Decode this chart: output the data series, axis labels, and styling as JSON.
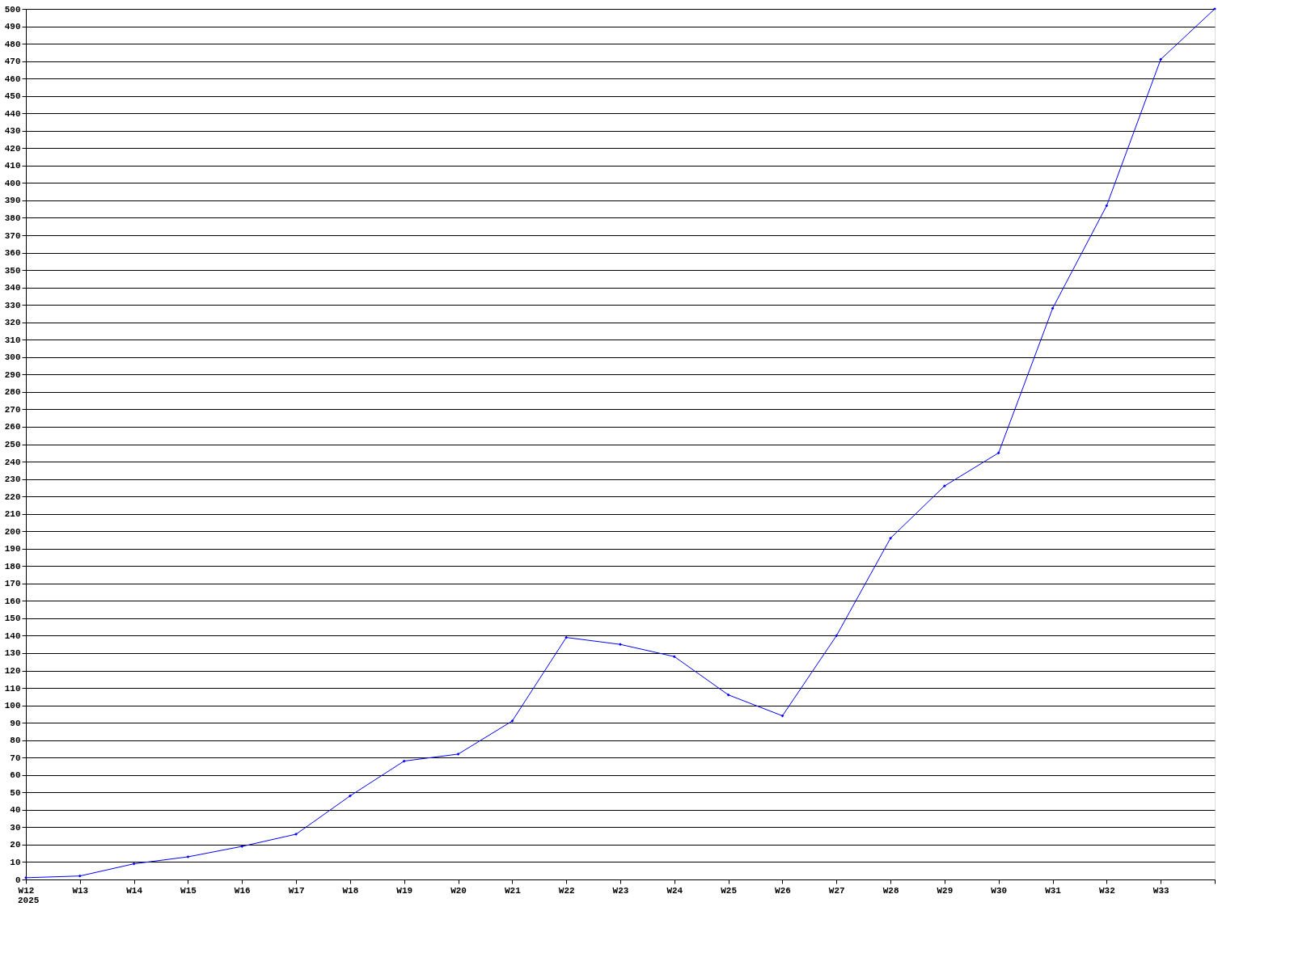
{
  "chart_data": {
    "type": "line",
    "categories": [
      "W12",
      "W13",
      "W14",
      "W15",
      "W16",
      "W17",
      "W18",
      "W19",
      "W20",
      "W21",
      "W22",
      "W23",
      "W24",
      "W25",
      "W26",
      "W27",
      "W28",
      "W29",
      "W30",
      "W31",
      "W32",
      "W33",
      null
    ],
    "series": [
      {
        "color": "#0000ff",
        "values": [
          1,
          2,
          9,
          13,
          19,
          26,
          48,
          68,
          72,
          91,
          139,
          135,
          128,
          106,
          94,
          140,
          196,
          226,
          245,
          328,
          387,
          471,
          500
        ]
      }
    ],
    "ylim": [
      0,
      500
    ],
    "yticks": [
      0,
      10,
      20,
      30,
      40,
      50,
      60,
      70,
      80,
      90,
      100,
      110,
      120,
      130,
      140,
      150,
      160,
      170,
      180,
      190,
      200,
      210,
      220,
      230,
      240,
      250,
      260,
      270,
      280,
      290,
      300,
      310,
      320,
      330,
      340,
      350,
      360,
      370,
      380,
      390,
      400,
      410,
      420,
      430,
      440,
      450,
      460,
      470,
      480,
      490,
      500
    ],
    "grid": "y",
    "marker": "diamond",
    "line_style": "solid",
    "legend": false,
    "annotations": [
      "2025"
    ]
  }
}
